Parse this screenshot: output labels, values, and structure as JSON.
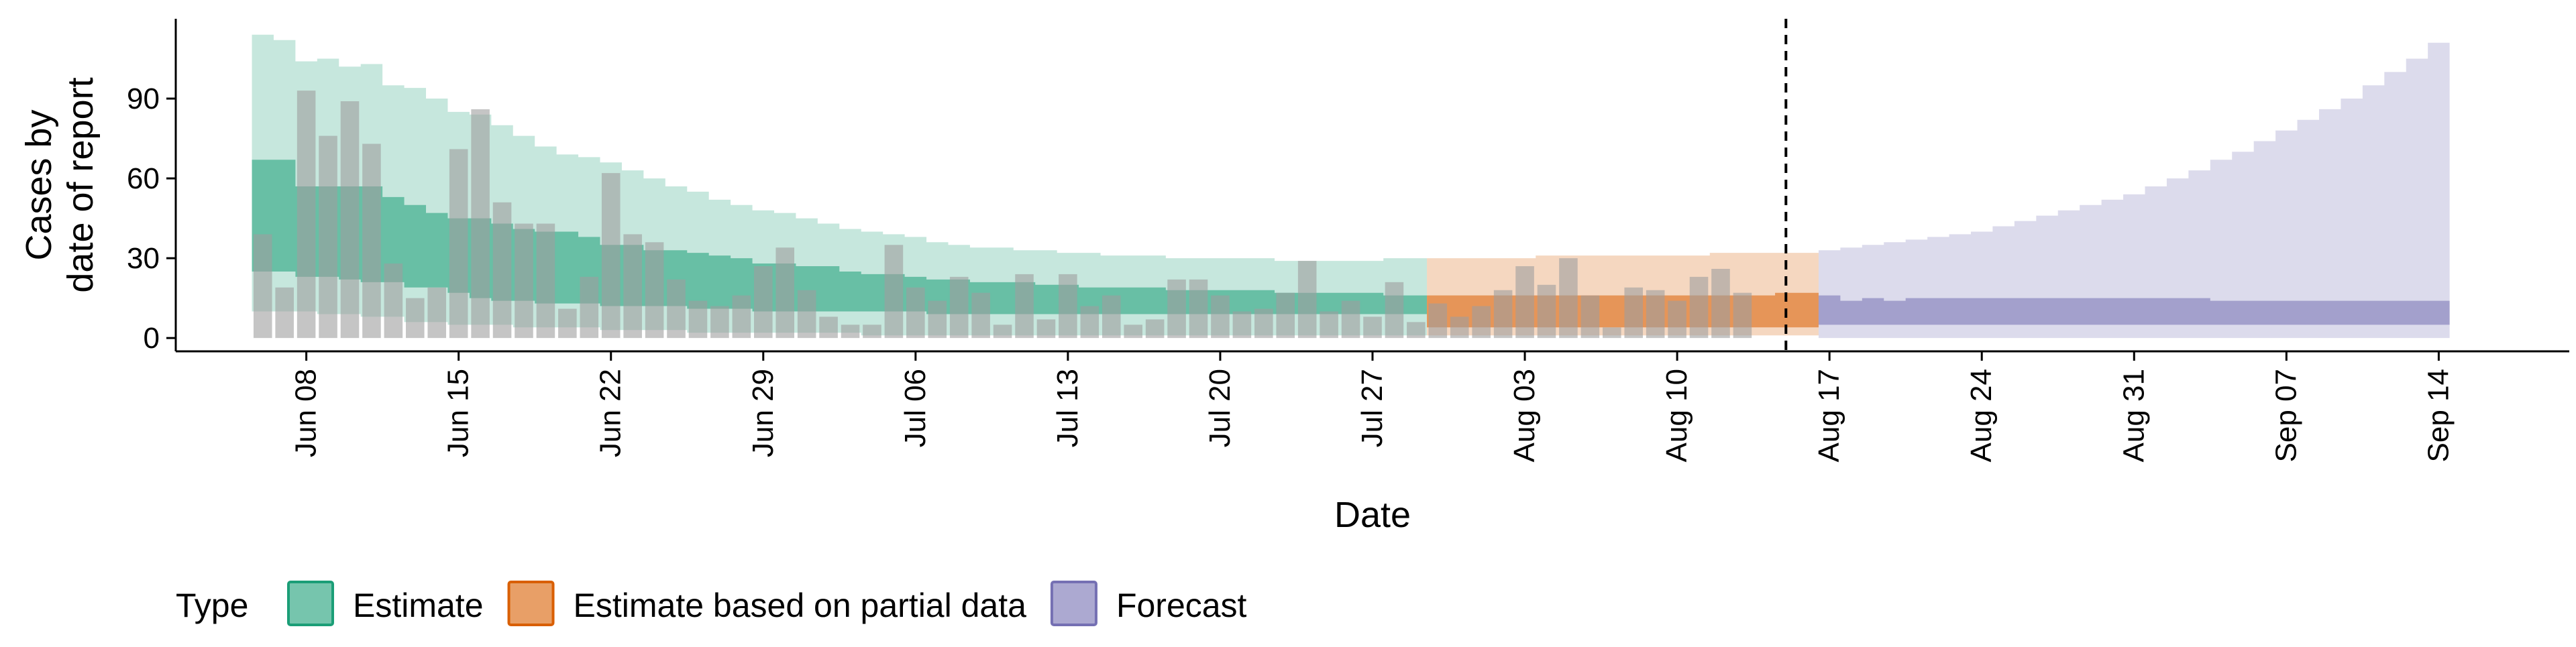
{
  "chart_data": {
    "type": "area",
    "title": "",
    "xlabel": "Date",
    "ylabel": [
      "Cases by",
      "date of report"
    ],
    "y_ticks": [
      0,
      30,
      60,
      90
    ],
    "ylim": [
      -5,
      120
    ],
    "x_range": [
      "2020-06-02",
      "2020-09-20"
    ],
    "x_ticks": [
      "2020-06-08",
      "2020-06-15",
      "2020-06-22",
      "2020-06-29",
      "2020-07-06",
      "2020-07-13",
      "2020-07-20",
      "2020-07-27",
      "2020-08-03",
      "2020-08-10",
      "2020-08-17",
      "2020-08-24",
      "2020-08-31",
      "2020-09-07",
      "2020-09-14"
    ],
    "x_tick_labels": [
      "Jun 08",
      "Jun 15",
      "Jun 22",
      "Jun 29",
      "Jul 06",
      "Jul 13",
      "Jul 20",
      "Jul 27",
      "Aug 03",
      "Aug 10",
      "Aug 17",
      "Aug 24",
      "Aug 31",
      "Sep 07",
      "Sep 14"
    ],
    "vline_date": "2020-08-15",
    "legend": {
      "title": "Type",
      "position": "bottom",
      "entries": [
        {
          "label": "Estimate",
          "color": "#1b9e77"
        },
        {
          "label": "Estimate based on partial data",
          "color": "#d95f02"
        },
        {
          "label": "Forecast",
          "color": "#7570b3"
        }
      ]
    },
    "observed_cases": {
      "start_date": "2020-06-06",
      "values": [
        39,
        19,
        93,
        76,
        89,
        73,
        28,
        15,
        19,
        71,
        86,
        51,
        43,
        43,
        11,
        23,
        62,
        39,
        36,
        22,
        14,
        12,
        16,
        27,
        34,
        18,
        8,
        5,
        5,
        35,
        19,
        14,
        23,
        17,
        5,
        24,
        7,
        24,
        12,
        16,
        5,
        7,
        22,
        22,
        16,
        10,
        11,
        17,
        29,
        10,
        14,
        8,
        21,
        6,
        13,
        8,
        12,
        18,
        27,
        20,
        30,
        16,
        4,
        19,
        18,
        14,
        23,
        26,
        17
      ]
    },
    "series": [
      {
        "name": "Estimate",
        "start_date": "2020-06-06",
        "ci90_lower": [
          10,
          10,
          10,
          9,
          9,
          8,
          8,
          6,
          6,
          5,
          5,
          5,
          4,
          4,
          4,
          4,
          3,
          3,
          3,
          3,
          2,
          2,
          2,
          2,
          2,
          2,
          2,
          2,
          1,
          1,
          1,
          1,
          1,
          1,
          1,
          1,
          1,
          1,
          1,
          1,
          1,
          1,
          1,
          1,
          1,
          1,
          1,
          1,
          1,
          1,
          1,
          1,
          1,
          1
        ],
        "ci50_lower": [
          25,
          25,
          23,
          23,
          22,
          21,
          21,
          19,
          19,
          17,
          15,
          14,
          14,
          13,
          13,
          13,
          12,
          12,
          12,
          12,
          11,
          11,
          11,
          10,
          10,
          10,
          10,
          10,
          10,
          10,
          10,
          9,
          9,
          9,
          9,
          9,
          9,
          9,
          9,
          9,
          9,
          9,
          9,
          9,
          9,
          9,
          9,
          9,
          9,
          9,
          9,
          9,
          9,
          9
        ],
        "ci50_upper": [
          67,
          67,
          57,
          57,
          57,
          57,
          53,
          50,
          47,
          45,
          45,
          43,
          41,
          40,
          40,
          38,
          35,
          35,
          33,
          33,
          32,
          31,
          30,
          28,
          28,
          27,
          27,
          25,
          24,
          24,
          23,
          22,
          22,
          21,
          21,
          21,
          20,
          20,
          19,
          19,
          19,
          19,
          18,
          18,
          18,
          18,
          18,
          17,
          17,
          17,
          17,
          17,
          16,
          16
        ],
        "ci90_upper": [
          114,
          112,
          104,
          105,
          102,
          103,
          95,
          94,
          90,
          85,
          84,
          80,
          76,
          72,
          69,
          68,
          66,
          63,
          60,
          57,
          55,
          52,
          50,
          48,
          47,
          45,
          43,
          41,
          40,
          39,
          38,
          36,
          35,
          34,
          34,
          33,
          33,
          32,
          32,
          31,
          31,
          31,
          30,
          30,
          30,
          30,
          30,
          29,
          29,
          29,
          29,
          29,
          30,
          30
        ]
      },
      {
        "name": "Estimate based on partial data",
        "start_date": "2020-07-30",
        "ci90_lower": [
          1,
          1,
          1,
          1,
          1,
          1,
          1,
          1,
          1,
          1,
          1,
          1,
          1,
          1,
          1,
          1,
          1,
          1
        ],
        "ci50_lower": [
          4,
          4,
          4,
          4,
          4,
          4,
          4,
          4,
          4,
          4,
          4,
          4,
          4,
          4,
          4,
          4,
          4,
          4
        ],
        "ci50_upper": [
          16,
          16,
          16,
          16,
          16,
          16,
          16,
          16,
          16,
          16,
          16,
          16,
          16,
          16,
          16,
          16,
          17,
          17
        ],
        "ci90_upper": [
          30,
          30,
          30,
          30,
          30,
          31,
          31,
          31,
          31,
          31,
          31,
          31,
          31,
          32,
          32,
          32,
          32,
          32
        ]
      },
      {
        "name": "Forecast",
        "start_date": "2020-08-17",
        "ci90_lower": [
          0,
          0,
          0,
          0,
          0,
          0,
          0,
          0,
          0,
          0,
          0,
          0,
          0,
          0,
          0,
          0,
          0,
          0,
          0,
          0,
          0,
          0,
          0,
          0,
          0,
          0,
          0,
          0,
          0
        ],
        "ci50_lower": [
          5,
          5,
          5,
          5,
          5,
          5,
          5,
          5,
          5,
          5,
          5,
          5,
          5,
          5,
          5,
          5,
          5,
          5,
          5,
          5,
          5,
          5,
          5,
          5,
          5,
          5,
          5,
          5,
          5
        ],
        "ci50_upper": [
          16,
          14,
          15,
          14,
          15,
          15,
          15,
          15,
          15,
          15,
          15,
          15,
          15,
          15,
          15,
          15,
          15,
          15,
          14,
          14,
          14,
          14,
          14,
          14,
          14,
          14,
          14,
          14,
          14
        ],
        "ci90_upper": [
          33,
          34,
          35,
          36,
          37,
          38,
          39,
          40,
          42,
          44,
          46,
          48,
          50,
          52,
          54,
          57,
          60,
          63,
          67,
          70,
          74,
          78,
          82,
          86,
          90,
          95,
          100,
          105,
          111
        ]
      }
    ]
  }
}
